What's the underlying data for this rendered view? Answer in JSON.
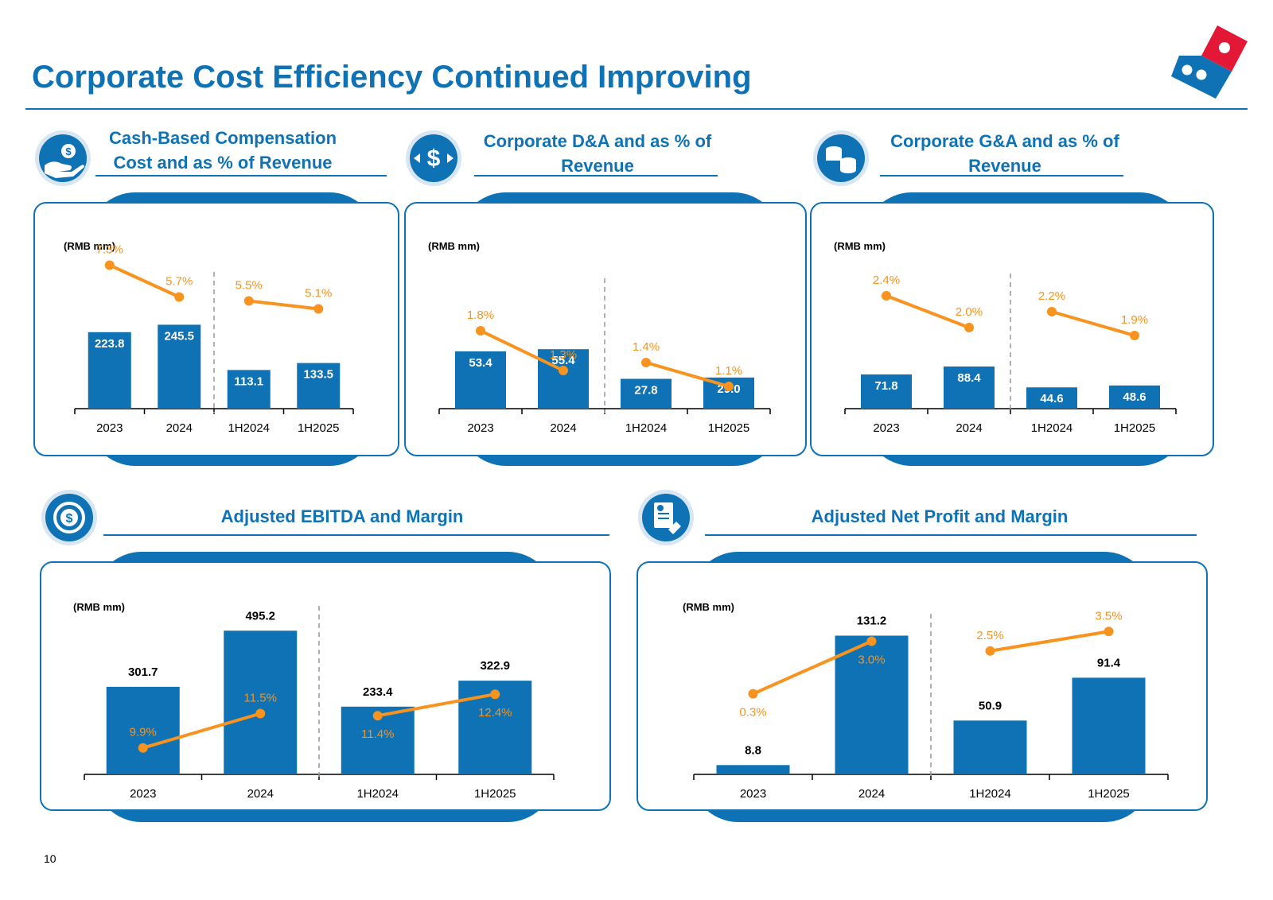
{
  "page": {
    "title": "Corporate Cost Efficiency Continued Improving",
    "page_number": "10"
  },
  "colors": {
    "brand_blue": "#0E72B5",
    "bar_blue": "#0E72B5",
    "line_orange": "#F7931E",
    "logo_red": "#E31837"
  },
  "sections": [
    {
      "title": "Cash-Based Compensation Cost and as % of Revenue",
      "icon": "hand-coin-icon"
    },
    {
      "title": "Corporate D&A and as % of Revenue",
      "icon": "dollar-exchange-icon"
    },
    {
      "title": "Corporate G&A and as % of Revenue",
      "icon": "coin-stack-icon"
    },
    {
      "title": "Adjusted EBITDA and Margin",
      "icon": "dollar-cycle-icon"
    },
    {
      "title": "Adjusted Net Profit and Margin",
      "icon": "document-hand-icon"
    }
  ],
  "chart_data": [
    {
      "type": "bar+line",
      "title": "Cash-Based Compensation Cost and as % of Revenue",
      "unit_label": "(RMB mm)",
      "categories": [
        "2023",
        "2024",
        "1H2024",
        "1H2025"
      ],
      "bars": [
        223.8,
        245.5,
        113.1,
        133.5
      ],
      "bar_labels": [
        "223.8",
        "245.5",
        "113.1",
        "133.5"
      ],
      "line": [
        7.3,
        5.7,
        5.5,
        5.1
      ],
      "line_labels": [
        "7.3%",
        "5.7%",
        "5.5%",
        "5.1%"
      ],
      "divider_after_index": 1
    },
    {
      "type": "bar+line",
      "title": "Corporate D&A and as % of Revenue",
      "unit_label": "(RMB mm)",
      "categories": [
        "2023",
        "2024",
        "1H2024",
        "1H2025"
      ],
      "bars": [
        53.4,
        55.4,
        27.8,
        29.0
      ],
      "bar_labels": [
        "53.4",
        "55.4",
        "27.8",
        "29.0"
      ],
      "line": [
        1.8,
        1.3,
        1.4,
        1.1
      ],
      "line_labels": [
        "1.8%",
        "1.3%",
        "1.4%",
        "1.1%"
      ],
      "divider_after_index": 1
    },
    {
      "type": "bar+line",
      "title": "Corporate G&A and as % of Revenue",
      "unit_label": "(RMB mm)",
      "categories": [
        "2023",
        "2024",
        "1H2024",
        "1H2025"
      ],
      "bars": [
        71.8,
        88.4,
        44.6,
        48.6
      ],
      "bar_labels": [
        "71.8",
        "88.4",
        "44.6",
        "48.6"
      ],
      "line": [
        2.4,
        2.0,
        2.2,
        1.9
      ],
      "line_labels": [
        "2.4%",
        "2.0%",
        "2.2%",
        "1.9%"
      ],
      "divider_after_index": 1
    },
    {
      "type": "bar+line",
      "title": "Adjusted EBITDA and Margin",
      "unit_label": "(RMB mm)",
      "categories": [
        "2023",
        "2024",
        "1H2024",
        "1H2025"
      ],
      "bars": [
        301.7,
        495.2,
        233.4,
        322.9
      ],
      "bar_labels": [
        "301.7",
        "495.2",
        "233.4",
        "322.9"
      ],
      "line": [
        9.9,
        11.5,
        11.4,
        12.4
      ],
      "line_labels": [
        "9.9%",
        "11.5%",
        "11.4%",
        "12.4%"
      ],
      "divider_after_index": 1
    },
    {
      "type": "bar+line",
      "title": "Adjusted Net Profit and Margin",
      "unit_label": "(RMB mm)",
      "categories": [
        "2023",
        "2024",
        "1H2024",
        "1H2025"
      ],
      "bars": [
        8.8,
        131.2,
        50.9,
        91.4
      ],
      "bar_labels": [
        "8.8",
        "131.2",
        "50.9",
        "91.4"
      ],
      "line": [
        0.3,
        3.0,
        2.5,
        3.5
      ],
      "line_labels": [
        "0.3%",
        "3.0%",
        "2.5%",
        "3.5%"
      ],
      "divider_after_index": 1
    }
  ]
}
